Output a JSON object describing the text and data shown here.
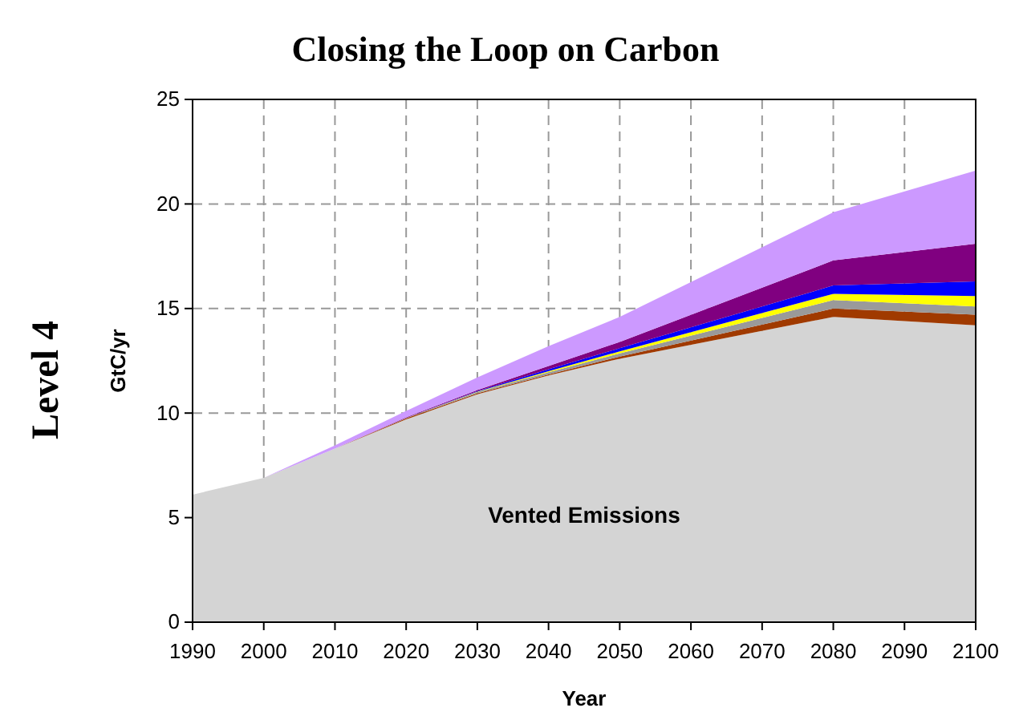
{
  "chart_data": {
    "type": "area",
    "title": "Closing the Loop on Carbon",
    "xlabel": "Year",
    "ylabel": "GtC/yr",
    "annotations": [
      "Level 4"
    ],
    "x": [
      1990,
      2000,
      2010,
      2020,
      2030,
      2040,
      2050,
      2080,
      2100
    ],
    "stacked": true,
    "series": [
      {
        "name": "Vented Emissions",
        "color": "#d4d4d4",
        "values": [
          6.1,
          6.9,
          8.3,
          9.7,
          10.9,
          11.8,
          12.6,
          14.6,
          14.2
        ]
      },
      {
        "color": "#a03a00",
        "values": [
          0,
          0,
          0,
          0.05,
          0.05,
          0.05,
          0.1,
          0.4,
          0.5
        ]
      },
      {
        "color": "#9a9a9a",
        "values": [
          0,
          0,
          0,
          0.02,
          0.05,
          0.1,
          0.15,
          0.4,
          0.4
        ]
      },
      {
        "color": "#ffff00",
        "values": [
          0,
          0,
          0,
          0,
          0.02,
          0.05,
          0.1,
          0.3,
          0.5
        ]
      },
      {
        "color": "#0000ff",
        "values": [
          0,
          0,
          0,
          0,
          0.03,
          0.1,
          0.15,
          0.4,
          0.7
        ]
      },
      {
        "color": "#800080",
        "values": [
          0,
          0,
          0,
          0.03,
          0.05,
          0.15,
          0.3,
          1.2,
          1.8
        ]
      },
      {
        "color": "#cc99ff",
        "values": [
          0,
          0,
          0.15,
          0.3,
          0.6,
          0.95,
          1.2,
          2.3,
          3.5
        ]
      }
    ],
    "xlim": [
      1990,
      2100
    ],
    "xticks": [
      1990,
      2000,
      2010,
      2020,
      2030,
      2040,
      2050,
      2060,
      2070,
      2080,
      2090,
      2100
    ],
    "ylim": [
      0,
      25
    ],
    "yticks": [
      0,
      5,
      10,
      15,
      20,
      25
    ],
    "grid": true
  }
}
